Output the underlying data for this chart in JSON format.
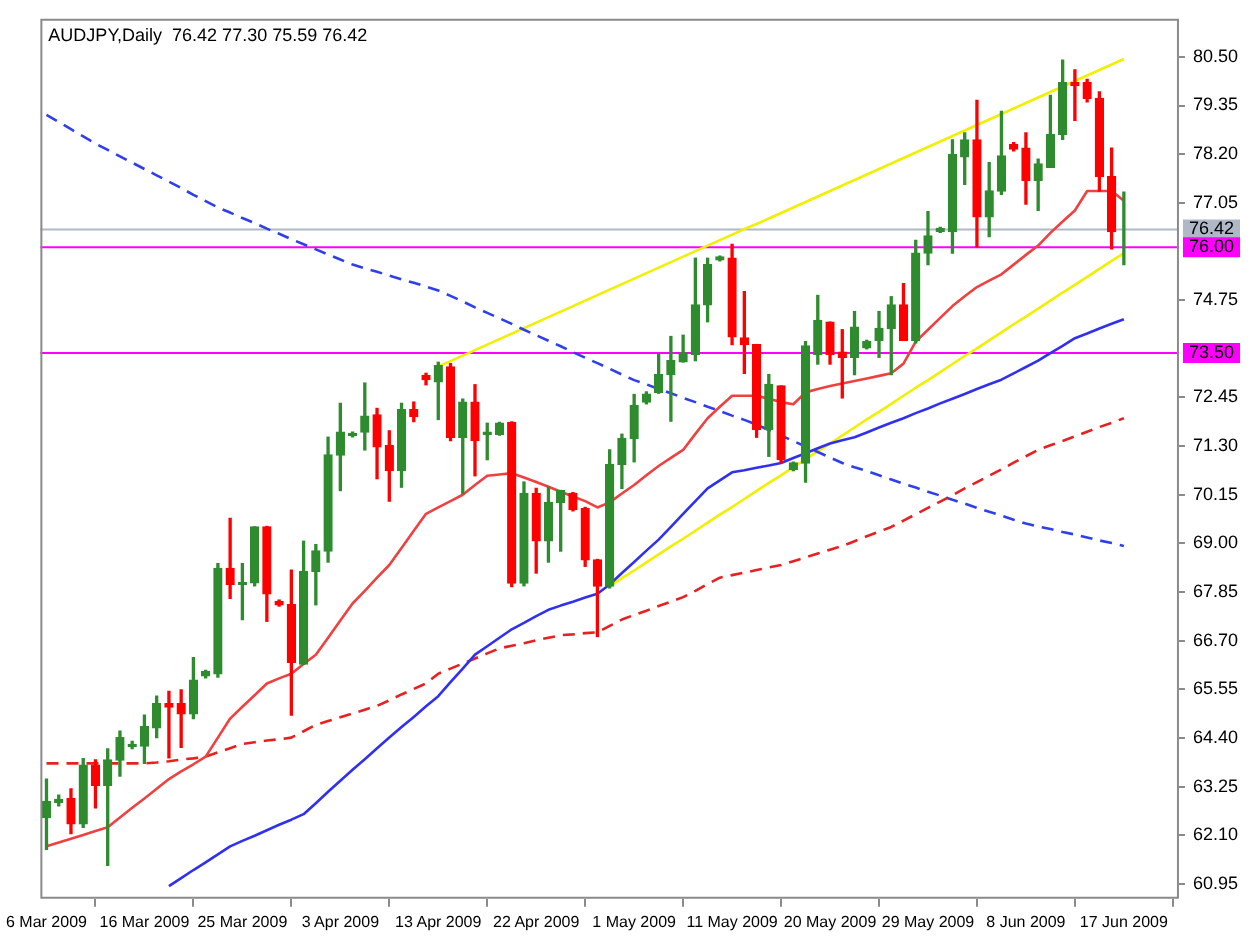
{
  "chart_data": {
    "type": "candlestick",
    "title": "AUDJPY,Daily  76.42 77.30 75.59 76.42",
    "categories": [
      "6 Mar 2009",
      null,
      null,
      null,
      null,
      null,
      null,
      null,
      "16 Mar 2009",
      null,
      null,
      null,
      null,
      null,
      null,
      null,
      "25 Mar 2009",
      null,
      null,
      null,
      null,
      null,
      null,
      null,
      "3 Apr 2009",
      null,
      null,
      null,
      null,
      null,
      null,
      null,
      "13 Apr 2009",
      null,
      null,
      null,
      null,
      null,
      null,
      null,
      "22 Apr 2009",
      null,
      null,
      null,
      null,
      null,
      null,
      null,
      "1 May 2009",
      null,
      null,
      null,
      null,
      null,
      null,
      null,
      "11 May 2009",
      null,
      null,
      null,
      null,
      null,
      null,
      null,
      "20 May 2009",
      null,
      null,
      null,
      null,
      null,
      null,
      null,
      "29 May 2009",
      null,
      null,
      null,
      null,
      null,
      null,
      null,
      "8 Jun 2009",
      null,
      null,
      null,
      null,
      null,
      null,
      null,
      "17 Jun 2009"
    ],
    "ohlc": [
      [
        62.52,
        63.43,
        61.77,
        62.9
      ],
      [
        62.88,
        63.05,
        62.8,
        62.95
      ],
      [
        62.97,
        63.2,
        62.14,
        62.37
      ],
      [
        62.37,
        63.91,
        62.29,
        63.76
      ],
      [
        63.76,
        63.88,
        62.75,
        63.28
      ],
      [
        63.28,
        64.14,
        61.39,
        63.88
      ],
      [
        63.88,
        64.56,
        63.5,
        64.41
      ],
      [
        64.2,
        64.32,
        64.15,
        64.25
      ],
      [
        64.21,
        64.94,
        63.8,
        64.67
      ],
      [
        64.64,
        65.39,
        64.41,
        65.21
      ],
      [
        65.21,
        65.5,
        63.93,
        65.13
      ],
      [
        65.21,
        65.54,
        64.18,
        64.97
      ],
      [
        64.97,
        66.3,
        64.86,
        65.77
      ],
      [
        65.87,
        66.0,
        65.82,
        65.97
      ],
      [
        65.92,
        68.52,
        65.84,
        68.41
      ],
      [
        68.41,
        69.59,
        67.7,
        68.03
      ],
      [
        68.03,
        68.52,
        67.2,
        68.07
      ],
      [
        68.07,
        69.39,
        68.0,
        69.39
      ],
      [
        69.39,
        69.4,
        67.16,
        67.81
      ],
      [
        67.63,
        67.66,
        67.52,
        67.55
      ],
      [
        67.55,
        68.37,
        64.94,
        66.19
      ],
      [
        66.15,
        69.05,
        66.15,
        68.34
      ],
      [
        68.34,
        68.97,
        67.55,
        68.82
      ],
      [
        68.82,
        71.51,
        68.56,
        71.09
      ],
      [
        71.09,
        72.31,
        70.25,
        71.63
      ],
      [
        71.55,
        71.63,
        71.52,
        71.6
      ],
      [
        71.63,
        72.79,
        71.21,
        72.01
      ],
      [
        72.04,
        72.19,
        70.53,
        71.28
      ],
      [
        71.31,
        71.66,
        70.0,
        70.72
      ],
      [
        70.72,
        72.31,
        70.33,
        72.16
      ],
      [
        72.16,
        72.34,
        71.88,
        72.0
      ],
      [
        72.97,
        73.02,
        72.75,
        72.87
      ],
      [
        72.82,
        73.28,
        71.93,
        73.2
      ],
      [
        73.17,
        73.25,
        71.43,
        71.51
      ],
      [
        71.51,
        72.41,
        70.18,
        72.34
      ],
      [
        72.34,
        72.75,
        70.6,
        71.43
      ],
      [
        71.57,
        71.84,
        70.98,
        71.63
      ],
      [
        71.58,
        71.86,
        71.56,
        71.84
      ],
      [
        71.86,
        71.87,
        67.98,
        68.06
      ],
      [
        68.06,
        70.45,
        68.0,
        70.18
      ],
      [
        70.18,
        70.3,
        68.3,
        69.06
      ],
      [
        69.06,
        70.33,
        68.56,
        69.97
      ],
      [
        69.97,
        70.25,
        68.82,
        70.25
      ],
      [
        70.18,
        70.2,
        69.77,
        69.8
      ],
      [
        69.82,
        69.85,
        68.46,
        68.61
      ],
      [
        68.61,
        68.62,
        66.8,
        67.99
      ],
      [
        67.99,
        71.21,
        67.95,
        70.87
      ],
      [
        70.87,
        71.58,
        70.3,
        71.48
      ],
      [
        71.48,
        72.52,
        70.93,
        72.26
      ],
      [
        72.34,
        72.58,
        72.3,
        72.53
      ],
      [
        72.57,
        73.47,
        72.55,
        72.99
      ],
      [
        72.99,
        73.89,
        71.89,
        73.32
      ],
      [
        73.29,
        73.92,
        73.29,
        73.5
      ],
      [
        73.47,
        75.74,
        73.32,
        74.64
      ],
      [
        74.64,
        75.74,
        74.24,
        75.59
      ],
      [
        75.7,
        75.79,
        75.68,
        75.77
      ],
      [
        75.74,
        76.07,
        73.7,
        73.88
      ],
      [
        73.86,
        74.95,
        73.02,
        73.7
      ],
      [
        73.7,
        73.7,
        71.51,
        71.69
      ],
      [
        71.69,
        72.99,
        71.06,
        72.76
      ],
      [
        72.72,
        72.72,
        70.9,
        70.98
      ],
      [
        70.75,
        70.92,
        70.72,
        70.9
      ],
      [
        70.9,
        73.77,
        70.45,
        73.67
      ],
      [
        73.47,
        74.86,
        73.24,
        74.27
      ],
      [
        74.23,
        74.23,
        73.24,
        73.47
      ],
      [
        73.52,
        74.05,
        72.44,
        73.4
      ],
      [
        73.4,
        74.48,
        72.99,
        74.11
      ],
      [
        73.62,
        73.8,
        73.6,
        73.77
      ],
      [
        73.8,
        74.48,
        73.4,
        74.08
      ],
      [
        74.08,
        74.83,
        72.99,
        74.64
      ],
      [
        74.64,
        75.14,
        73.8,
        73.8
      ],
      [
        73.8,
        76.16,
        73.74,
        75.86
      ],
      [
        75.86,
        76.84,
        75.59,
        76.27
      ],
      [
        76.37,
        76.47,
        76.35,
        76.44
      ],
      [
        76.37,
        78.54,
        75.86,
        78.19
      ],
      [
        78.14,
        78.7,
        77.49,
        78.54
      ],
      [
        78.54,
        79.47,
        76.01,
        76.72
      ],
      [
        76.72,
        78.0,
        76.25,
        77.33
      ],
      [
        77.33,
        79.21,
        77.25,
        78.16
      ],
      [
        78.43,
        78.47,
        78.28,
        78.32
      ],
      [
        78.34,
        78.7,
        77.02,
        77.58
      ],
      [
        77.58,
        78.08,
        76.87,
        77.97
      ],
      [
        77.89,
        79.59,
        77.89,
        78.67
      ],
      [
        78.67,
        80.42,
        78.55,
        79.89
      ],
      [
        79.89,
        80.19,
        79.0,
        79.82
      ],
      [
        79.89,
        79.97,
        79.44,
        79.52
      ],
      [
        79.52,
        79.67,
        77.33,
        77.67
      ],
      [
        77.67,
        78.34,
        75.96,
        76.37
      ],
      [
        76.42,
        77.3,
        75.59,
        76.42
      ]
    ],
    "colors": [
      "#2e8b2e",
      "#2e8b2e",
      "#ff0000",
      "#2e8b2e",
      "#ff0000",
      "#2e8b2e",
      "#2e8b2e",
      "#2e8b2e",
      "#2e8b2e",
      "#2e8b2e",
      "#ff0000",
      "#ff0000",
      "#2e8b2e",
      "#2e8b2e",
      "#2e8b2e",
      "#ff0000",
      "#2e8b2e",
      "#2e8b2e",
      "#ff0000",
      "#ff0000",
      "#ff0000",
      "#2e8b2e",
      "#2e8b2e",
      "#2e8b2e",
      "#2e8b2e",
      "#2e8b2e",
      "#2e8b2e",
      "#ff0000",
      "#ff0000",
      "#2e8b2e",
      "#ff0000",
      "#ff0000",
      "#2e8b2e",
      "#ff0000",
      "#2e8b2e",
      "#ff0000",
      "#2e8b2e",
      "#2e8b2e",
      "#ff0000",
      "#2e8b2e",
      "#ff0000",
      "#2e8b2e",
      "#2e8b2e",
      "#ff0000",
      "#ff0000",
      "#ff0000",
      "#2e8b2e",
      "#2e8b2e",
      "#2e8b2e",
      "#2e8b2e",
      "#2e8b2e",
      "#2e8b2e",
      "#2e8b2e",
      "#2e8b2e",
      "#2e8b2e",
      "#2e8b2e",
      "#ff0000",
      "#ff0000",
      "#ff0000",
      "#2e8b2e",
      "#ff0000",
      "#2e8b2e",
      "#2e8b2e",
      "#2e8b2e",
      "#ff0000",
      "#ff0000",
      "#2e8b2e",
      "#2e8b2e",
      "#2e8b2e",
      "#2e8b2e",
      "#ff0000",
      "#2e8b2e",
      "#2e8b2e",
      "#2e8b2e",
      "#2e8b2e",
      "#2e8b2e",
      "#ff0000",
      "#2e8b2e",
      "#2e8b2e",
      "#ff0000",
      "#ff0000",
      "#2e8b2e",
      "#2e8b2e",
      "#2e8b2e",
      "#ff0000",
      "#ff0000",
      "#ff0000",
      "#ff0000",
      "#2e8b2e"
    ],
    "series": [
      {
        "type": "line",
        "color": "#f04040",
        "line_style": "solid",
        "values": [
          61.84,
          61.93,
          62.02,
          62.11,
          62.2,
          62.29,
          62.52,
          62.75,
          62.97,
          63.2,
          63.43,
          63.61,
          63.78,
          63.96,
          64.41,
          64.86,
          65.14,
          65.41,
          65.69,
          65.81,
          65.92,
          66.15,
          66.37,
          66.77,
          67.18,
          67.58,
          67.88,
          68.19,
          68.49,
          68.89,
          69.3,
          69.7,
          69.85,
          70.0,
          70.15,
          70.38,
          70.6,
          70.63,
          70.66,
          70.56,
          70.45,
          70.34,
          70.22,
          70.11,
          70.0,
          69.85,
          69.97,
          70.18,
          70.38,
          70.61,
          70.83,
          71.02,
          71.21,
          71.59,
          71.96,
          72.23,
          72.49,
          72.49,
          72.49,
          72.42,
          72.34,
          72.29,
          72.57,
          72.65,
          72.72,
          72.78,
          72.84,
          72.9,
          72.96,
          73.02,
          73.25,
          73.77,
          74.05,
          74.33,
          74.61,
          74.84,
          75.06,
          75.21,
          75.36,
          75.59,
          75.82,
          76.04,
          76.34,
          76.61,
          76.87,
          77.33,
          77.33,
          77.33,
          77.1
        ]
      },
      {
        "type": "line",
        "color": "#3030f0",
        "line_style": "solid",
        "values": [
          null,
          null,
          null,
          null,
          null,
          null,
          null,
          null,
          null,
          null,
          60.9,
          61.09,
          61.28,
          61.46,
          61.65,
          61.84,
          61.97,
          62.09,
          62.22,
          62.35,
          62.47,
          62.6,
          62.86,
          63.13,
          63.39,
          63.65,
          63.9,
          64.16,
          64.41,
          64.66,
          64.9,
          65.15,
          65.39,
          65.72,
          66.04,
          66.37,
          66.57,
          66.77,
          66.97,
          67.12,
          67.28,
          67.43,
          67.53,
          67.62,
          67.72,
          67.81,
          68.03,
          68.3,
          68.56,
          68.83,
          69.09,
          69.39,
          69.7,
          70.0,
          70.3,
          70.49,
          70.68,
          70.73,
          70.79,
          70.84,
          70.9,
          71.02,
          71.13,
          71.25,
          71.36,
          71.44,
          71.51,
          71.62,
          71.74,
          71.85,
          71.96,
          72.08,
          72.19,
          72.31,
          72.42,
          72.53,
          72.65,
          72.76,
          72.87,
          73.02,
          73.17,
          73.32,
          73.5,
          73.67,
          73.85,
          73.96,
          74.08,
          74.19,
          74.3
        ]
      },
      {
        "type": "line",
        "color": "#e82020",
        "line_style": "dashed",
        "values": [
          63.8,
          63.8,
          63.8,
          63.8,
          63.8,
          63.8,
          63.8,
          63.8,
          63.8,
          63.82,
          63.85,
          63.89,
          63.92,
          63.96,
          64.06,
          64.16,
          64.26,
          64.3,
          64.34,
          64.37,
          64.41,
          64.56,
          64.71,
          64.8,
          64.89,
          64.98,
          65.07,
          65.16,
          65.29,
          65.43,
          65.56,
          65.69,
          65.92,
          66.04,
          66.16,
          66.28,
          66.4,
          66.52,
          66.58,
          66.64,
          66.71,
          66.77,
          66.83,
          66.85,
          66.88,
          66.9,
          67.05,
          67.2,
          67.31,
          67.41,
          67.52,
          67.62,
          67.73,
          67.88,
          68.04,
          68.19,
          68.25,
          68.31,
          68.37,
          68.43,
          68.49,
          68.58,
          68.67,
          68.76,
          68.85,
          68.94,
          69.05,
          69.17,
          69.28,
          69.39,
          69.54,
          69.69,
          69.84,
          69.99,
          70.14,
          70.3,
          70.45,
          70.6,
          70.75,
          70.91,
          71.06,
          71.21,
          71.32,
          71.42,
          71.53,
          71.64,
          71.75,
          71.85,
          71.96
        ]
      },
      {
        "type": "line",
        "color": "#3040e8",
        "line_style": "dashed",
        "values": [
          79.13,
          78.96,
          78.79,
          78.62,
          78.45,
          78.3,
          78.15,
          78.0,
          77.85,
          77.7,
          77.55,
          77.4,
          77.24,
          77.09,
          76.94,
          76.82,
          76.69,
          76.57,
          76.44,
          76.32,
          76.19,
          76.07,
          75.95,
          75.83,
          75.71,
          75.59,
          75.5,
          75.42,
          75.33,
          75.24,
          75.16,
          75.07,
          74.98,
          74.85,
          74.72,
          74.58,
          74.45,
          74.32,
          74.19,
          74.05,
          73.92,
          73.79,
          73.66,
          73.52,
          73.39,
          73.26,
          73.13,
          72.99,
          72.86,
          72.76,
          72.65,
          72.55,
          72.44,
          72.34,
          72.23,
          72.13,
          72.02,
          71.92,
          71.81,
          71.68,
          71.55,
          71.42,
          71.29,
          71.16,
          71.03,
          70.9,
          70.8,
          70.71,
          70.61,
          70.51,
          70.41,
          70.32,
          70.22,
          70.13,
          70.03,
          69.94,
          69.84,
          69.75,
          69.66,
          69.56,
          69.47,
          69.4,
          69.34,
          69.27,
          69.21,
          69.14,
          69.07,
          69.01,
          68.94
        ]
      },
      {
        "type": "line",
        "color": "#f0f000",
        "line_style": "solid",
        "values": [
          null,
          null,
          null,
          null,
          null,
          null,
          null,
          null,
          null,
          null,
          null,
          null,
          null,
          null,
          null,
          null,
          null,
          null,
          null,
          null,
          null,
          null,
          null,
          null,
          null,
          null,
          null,
          null,
          null,
          null,
          null,
          null,
          73.18,
          73.31,
          73.44,
          73.57,
          73.7,
          73.83,
          73.96,
          74.09,
          74.22,
          74.35,
          74.48,
          74.61,
          74.74,
          74.87,
          75.0,
          75.13,
          75.26,
          75.39,
          75.52,
          75.65,
          75.78,
          75.91,
          76.04,
          76.17,
          76.3,
          76.43,
          76.55,
          76.68,
          76.81,
          76.94,
          77.07,
          77.2,
          77.33,
          77.46,
          77.59,
          77.72,
          77.85,
          77.98,
          78.11,
          78.24,
          78.37,
          78.5,
          78.63,
          78.76,
          78.89,
          79.02,
          79.15,
          79.28,
          79.41,
          79.54,
          79.67,
          79.8,
          79.93,
          80.06,
          80.19,
          80.32,
          80.45
        ]
      },
      {
        "type": "line",
        "color": "#f0f000",
        "line_style": "solid",
        "values": [
          null,
          null,
          null,
          null,
          null,
          null,
          null,
          null,
          null,
          null,
          null,
          null,
          null,
          null,
          null,
          null,
          null,
          null,
          null,
          null,
          null,
          null,
          null,
          null,
          null,
          null,
          null,
          null,
          null,
          null,
          null,
          null,
          null,
          null,
          null,
          null,
          null,
          null,
          null,
          null,
          null,
          null,
          null,
          null,
          null,
          null,
          67.99,
          68.18,
          68.36,
          68.55,
          68.74,
          68.93,
          69.11,
          69.3,
          69.49,
          69.68,
          69.86,
          70.05,
          70.24,
          70.43,
          70.61,
          70.8,
          70.99,
          71.18,
          71.36,
          71.55,
          71.74,
          71.93,
          72.11,
          72.3,
          72.49,
          72.68,
          72.86,
          73.05,
          73.24,
          73.43,
          73.61,
          73.8,
          73.99,
          74.18,
          74.36,
          74.55,
          74.74,
          74.93,
          75.11,
          75.3,
          75.49,
          75.68,
          75.86
        ]
      }
    ],
    "ylim": [
      60.6,
      81.4
    ],
    "yticks": [
      {
        "value": 60.95,
        "label": "60.95"
      },
      {
        "value": 62.1,
        "label": "62.10"
      },
      {
        "value": 63.25,
        "label": "63.25"
      },
      {
        "value": 64.4,
        "label": "64.40"
      },
      {
        "value": 65.55,
        "label": "65.55"
      },
      {
        "value": 66.7,
        "label": "66.70"
      },
      {
        "value": 67.85,
        "label": "67.85"
      },
      {
        "value": 69.0,
        "label": "69.00"
      },
      {
        "value": 70.15,
        "label": "70.15"
      },
      {
        "value": 71.3,
        "label": "71.30"
      },
      {
        "value": 72.45,
        "label": "72.45"
      },
      {
        "value": 74.75,
        "label": "74.75"
      },
      {
        "value": 77.05,
        "label": "77.05"
      },
      {
        "value": 78.2,
        "label": "78.20"
      },
      {
        "value": 79.35,
        "label": "79.35"
      },
      {
        "value": 80.5,
        "label": "80.50"
      }
    ],
    "ref_lines": [
      {
        "axis": "y",
        "value": 76.42,
        "label": "76.42",
        "color": "#b0b8c8"
      },
      {
        "axis": "y",
        "value": 76.0,
        "label": "76.00",
        "color": "#ff00ff"
      },
      {
        "axis": "y",
        "value": 73.5,
        "label": "73.50",
        "color": "#ff00ff"
      }
    ]
  }
}
